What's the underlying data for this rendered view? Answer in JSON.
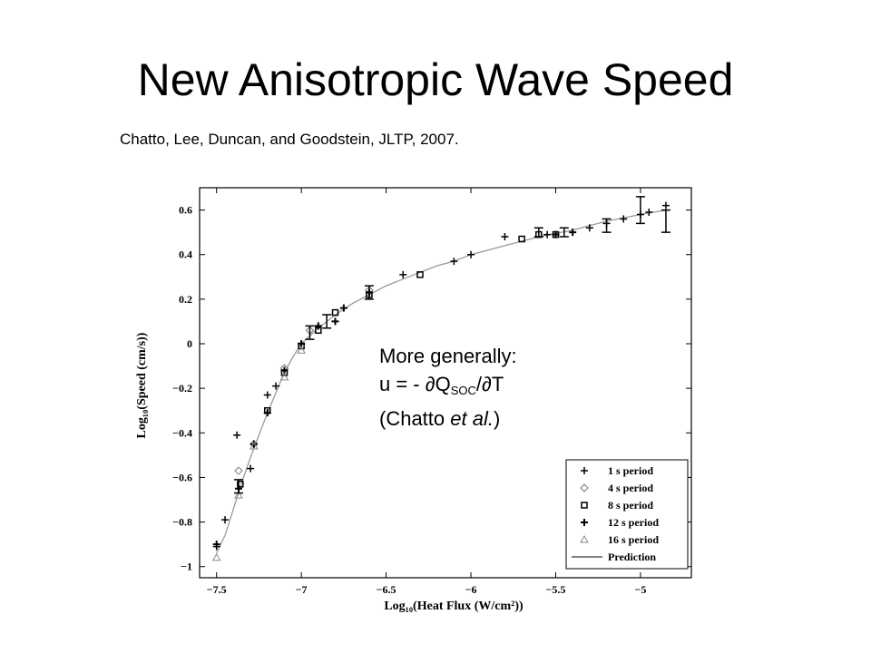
{
  "slide": {
    "title": "New Anisotropic Wave Speed",
    "citation": "Chatto, Lee, Duncan, and Goodstein, JLTP, 2007."
  },
  "note": {
    "line1": "More generally:",
    "line2_prefix": "u = - ∂Q",
    "line2_sub": "SOC",
    "line2_suffix": "/∂T",
    "line3_prefix": "(Chatto ",
    "line3_italic": "et al.",
    "line3_suffix": ")"
  },
  "chart_data": {
    "type": "scatter",
    "xlabel": "Log₁₀(Heat Flux (W/cm²))",
    "ylabel": "Log₁₀(Speed (cm/s))",
    "xlim": [
      -7.6,
      -4.7
    ],
    "ylim": [
      -1.05,
      0.7
    ],
    "x_ticks": [
      -7.5,
      -7,
      -6.5,
      -6,
      -5.5,
      -5
    ],
    "x_tick_labels": [
      "−7.5",
      "−7",
      "−6.5",
      "−6",
      "−5.5",
      "−5"
    ],
    "y_ticks": [
      0.6,
      0.4,
      0.2,
      0,
      -0.2,
      -0.4,
      -0.6,
      -0.8,
      -1
    ],
    "y_tick_labels": [
      "0.6",
      "0.4",
      "0.2",
      "0",
      "−0.2",
      "−0.4",
      "−0.6",
      "−0.8",
      "−1"
    ],
    "grid": false,
    "legend_position": "bottom-right",
    "series": [
      {
        "name": "1 s period",
        "marker": "plus",
        "points": [
          [
            -7.5,
            -0.91
          ],
          [
            -7.45,
            -0.79
          ],
          [
            -7.38,
            -0.41
          ],
          [
            -7.3,
            -0.56
          ],
          [
            -7.2,
            -0.23
          ],
          [
            -7.15,
            -0.19
          ],
          [
            -6.4,
            0.31
          ],
          [
            -6.1,
            0.37
          ],
          [
            -6,
            0.4
          ],
          [
            -5.8,
            0.48
          ],
          [
            -5.55,
            0.49
          ],
          [
            -5.3,
            0.52
          ],
          [
            -5.2,
            0.54
          ],
          [
            -5.1,
            0.56
          ],
          [
            -5.0,
            0.58
          ],
          [
            -4.95,
            0.59
          ],
          [
            -4.85,
            0.62
          ]
        ]
      },
      {
        "name": "4 s period",
        "marker": "diamond",
        "points": [
          [
            -7.37,
            -0.57
          ],
          [
            -7.28,
            -0.45
          ],
          [
            -7.1,
            -0.11
          ],
          [
            -6.95,
            0.06
          ],
          [
            -6.6,
            0.24
          ]
        ]
      },
      {
        "name": "8 s period",
        "marker": "square",
        "points": [
          [
            -7.36,
            -0.63
          ],
          [
            -7.2,
            -0.3
          ],
          [
            -7.1,
            -0.13
          ],
          [
            -7.0,
            -0.01
          ],
          [
            -6.9,
            0.06
          ],
          [
            -6.8,
            0.14
          ],
          [
            -6.6,
            0.22
          ],
          [
            -6.3,
            0.31
          ],
          [
            -5.7,
            0.47
          ],
          [
            -5.6,
            0.49
          ],
          [
            -5.5,
            0.49
          ]
        ]
      },
      {
        "name": "12 s period",
        "marker": "plus-bold",
        "points": [
          [
            -7.5,
            -0.9
          ],
          [
            -7.37,
            -0.65
          ],
          [
            -7.28,
            -0.45
          ],
          [
            -7.2,
            -0.31
          ],
          [
            -7.1,
            -0.12
          ],
          [
            -7.0,
            0.0
          ],
          [
            -6.9,
            0.08
          ],
          [
            -6.8,
            0.1
          ],
          [
            -6.75,
            0.16
          ],
          [
            -6.6,
            0.23
          ],
          [
            -5.5,
            0.49
          ],
          [
            -5.4,
            0.5
          ]
        ]
      },
      {
        "name": "16 s period",
        "marker": "triangle",
        "points": [
          [
            -7.5,
            -0.96
          ],
          [
            -7.37,
            -0.68
          ],
          [
            -7.28,
            -0.46
          ],
          [
            -7.1,
            -0.15
          ],
          [
            -7.0,
            -0.03
          ]
        ]
      }
    ],
    "error_bars": [
      {
        "x": -7.37,
        "y": -0.64,
        "err": 0.03
      },
      {
        "x": -6.95,
        "y": 0.05,
        "err": 0.03
      },
      {
        "x": -6.85,
        "y": 0.1,
        "err": 0.03
      },
      {
        "x": -6.6,
        "y": 0.23,
        "err": 0.03
      },
      {
        "x": -5.6,
        "y": 0.5,
        "err": 0.02
      },
      {
        "x": -5.45,
        "y": 0.5,
        "err": 0.02
      },
      {
        "x": -5.2,
        "y": 0.53,
        "err": 0.03
      },
      {
        "x": -5.0,
        "y": 0.6,
        "err": 0.06
      },
      {
        "x": -4.85,
        "y": 0.55,
        "err": 0.05
      }
    ],
    "prediction": {
      "name": "Prediction",
      "x": [
        -7.5,
        -7.45,
        -7.4,
        -7.35,
        -7.3,
        -7.25,
        -7.2,
        -7.15,
        -7.1,
        -7.05,
        -7.0,
        -6.9,
        -6.8,
        -6.7,
        -6.6,
        -6.5,
        -6.4,
        -6.3,
        -6.2,
        -6.1,
        -6.0,
        -5.8,
        -5.6,
        -5.4,
        -5.2,
        -5.0,
        -4.85
      ],
      "y": [
        -0.94,
        -0.86,
        -0.74,
        -0.62,
        -0.51,
        -0.41,
        -0.31,
        -0.22,
        -0.13,
        -0.06,
        0.0,
        0.07,
        0.13,
        0.18,
        0.22,
        0.26,
        0.29,
        0.32,
        0.35,
        0.37,
        0.4,
        0.44,
        0.48,
        0.51,
        0.55,
        0.58,
        0.6
      ]
    }
  }
}
